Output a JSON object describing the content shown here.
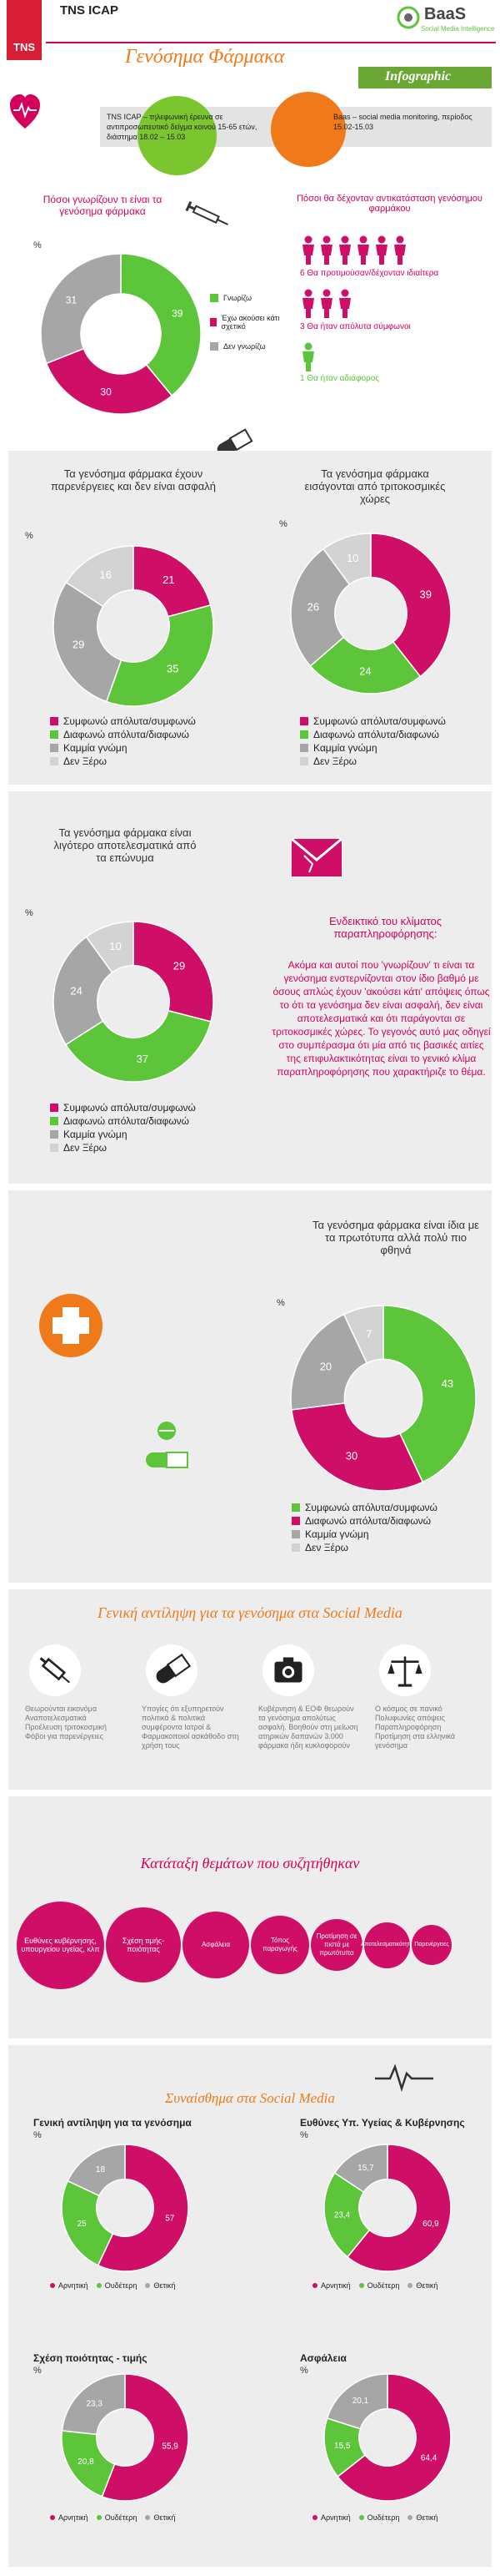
{
  "colors": {
    "magenta": "#cf0f67",
    "green": "#5cc53a",
    "gray": "#a6a6a6",
    "lightgray": "#d3d3d3",
    "orange": "#f07a1a",
    "tnsred": "#d81e34"
  },
  "header": {
    "tns_logo": "TNS",
    "brand": "TNS ICAP",
    "title": "Γενόσημα Φάρμακα",
    "baas_logo": "BaaS",
    "baas_sub": "Social Media Intelligence",
    "infographic": "Infographic"
  },
  "method": {
    "left_text": "TNS ICAP – τηλεφωνική έρευνα σε αντιπροσωπευτικό δείγμα κοινού 15-65 ετών, διάστημα 18.02 – 15.03",
    "right_text": "Baas – social media monitoring, περίοδος 15.02-15.03"
  },
  "awareness": {
    "question": "Πόσοι γνωρίζουν τι είναι τα γενόσημα φάρμακα",
    "pct": "%",
    "chart_data": {
      "type": "pie",
      "slices": [
        {
          "label": "Γνωρίζω",
          "value": 39,
          "color": "#5cc53a"
        },
        {
          "label": "Έχω ακούσει κάτι σχετικό",
          "value": 30,
          "color": "#cf0f67"
        },
        {
          "label": "Δεν γνωρίζω",
          "value": 31,
          "color": "#a6a6a6"
        }
      ]
    }
  },
  "acceptance": {
    "question": "Πόσοι θα δέχονταν αντικατάσταση γενόσημου φαρμάκου",
    "line1": "6 Θα προτιμούσαν/δέχονταν ιδιαίτερα",
    "line2": "3 Θα ήταν απόλυτα σύμφωνοι",
    "line3": "1 Θα ήταν αδιάφορος"
  },
  "legend_labels": {
    "agree": "Συμφωνώ απόλυτα/συμφωνώ",
    "disagree": "Διαφωνώ απόλυτα/διαφωνώ",
    "none": "Καμμία γνώμη",
    "dk": "Δεν Ξέρω"
  },
  "sideeffects": {
    "title": "Τα γενόσημα φάρμακα έχουν παρενέργειες και δεν είναι ασφαλή",
    "pct": "%",
    "chart_data": {
      "type": "pie",
      "slices": [
        {
          "label": "Συμφωνώ απόλυτα/συμφωνώ",
          "value": 21,
          "color": "#cf0f67"
        },
        {
          "label": "Διαφωνώ απόλυτα/διαφωνώ",
          "value": 35,
          "color": "#5cc53a"
        },
        {
          "label": "Καμμία γνώμη",
          "value": 29,
          "color": "#a6a6a6"
        },
        {
          "label": "Δεν Ξέρω",
          "value": 16,
          "color": "#d3d3d3"
        }
      ]
    }
  },
  "imported": {
    "title": "Τα γενόσημα φάρμακα εισάγονται από τριτοκοσμικές χώρες",
    "pct": "%",
    "chart_data": {
      "type": "pie",
      "slices": [
        {
          "label": "Συμφωνώ απόλυτα/συμφωνώ",
          "value": 39,
          "color": "#cf0f67"
        },
        {
          "label": "Διαφωνώ απόλυτα/διαφωνώ",
          "value": 24,
          "color": "#5cc53a"
        },
        {
          "label": "Καμμία γνώμη",
          "value": 26,
          "color": "#a6a6a6"
        },
        {
          "label": "Δεν Ξέρω",
          "value": 10,
          "color": "#d3d3d3"
        }
      ]
    }
  },
  "effective": {
    "title": "Τα γενόσημα φάρμακα είναι λιγότερο αποτελεσματικά από τα επώνυμα",
    "pct": "%",
    "chart_data": {
      "type": "pie",
      "slices": [
        {
          "label": "Συμφωνώ απόλυτα/συμφωνώ",
          "value": 29,
          "color": "#cf0f67"
        },
        {
          "label": "Διαφωνώ απόλυτα/διαφωνώ",
          "value": 37,
          "color": "#5cc53a"
        },
        {
          "label": "Καμμία γνώμη",
          "value": 24,
          "color": "#a6a6a6"
        },
        {
          "label": "Δεν Ξέρω",
          "value": 10,
          "color": "#d3d3d3"
        }
      ]
    }
  },
  "misinfo": {
    "heading": "Ενδεικτικό του κλίματος παραπληροφόρησης:",
    "body": "Ακόμα και αυτοί που 'γνωρίζουν' τι είναι τα γενόσημα ενστερνίζονται στον ίδιο βαθμό με όσους απλώς έχουν 'ακούσει κάτι' απόψεις όπως το ότι τα γενόσημα δεν είναι ασφαλή, δεν είναι αποτελεσματικά και ότι παράγονται σε τριτοκοσμικές χώρες. Το γεγονός αυτό μας οδηγεί στο συμπέρασμα ότι μία από τις βασικές αιτίες της επιφυλακτικότητας είναι το γενικό κλίμα παραπληροφόρησης που χαρακτήριζε το θέμα."
  },
  "same": {
    "title": "Τα γενόσημα φάρμακα είναι ίδια με τα πρωτότυπα αλλά πολύ πιο φθηνά",
    "pct": "%",
    "chart_data": {
      "type": "pie",
      "slices": [
        {
          "label": "Συμφωνώ απόλυτα/συμφωνώ",
          "value": 43,
          "color": "#5cc53a"
        },
        {
          "label": "Διαφωνώ απόλυτα/διαφωνώ",
          "value": 30,
          "color": "#cf0f67"
        },
        {
          "label": "Καμμία γνώμη",
          "value": 20,
          "color": "#a6a6a6"
        },
        {
          "label": "Δεν Ξέρω",
          "value": 7,
          "color": "#d3d3d3"
        }
      ]
    },
    "legend": [
      "Συμφωνώ απόλυτα/συμφωνώ",
      "Διαφωνώ απόλυτα/διαφωνώ",
      "Καμμία γνώμη",
      "Δεν Ξέρω"
    ]
  },
  "social": {
    "title": "Γενική αντίληψη για τα γενόσημα στα Social Media",
    "items": [
      {
        "icon": "syringe-icon",
        "text": "Θεωρούνται εικονόμα Αναποτελεσματικά Προέλευση τριτοκοσμική Φόβοι για παρενέργειες"
      },
      {
        "icon": "pill-icon",
        "text": "Υπογίες ότι εξυπηρετούν πολιτικά & πολιτικά συμφέροντα Ιατροί & Φαρμακοποιοί ασκάθοδο στη χρήση τους"
      },
      {
        "icon": "camera-icon",
        "text": "Κυβέρνηση & ΕΟΦ θεωρούν τα γενόσημα απολύτως ασφαλή. Βοηθούν στη μείωση ατηρικών δαπανών 3.000 φάρμακα ήδη κυκλοφορούν"
      },
      {
        "icon": "balance-icon",
        "text": "Ο κόσμος σε πανικό Πολυφωνίες απόψεις Παραπληροφόρηση Προτίμηση στα ελληνικά γενόσημα"
      }
    ]
  },
  "ranking": {
    "title": "Κατάταξη θεμάτων που συζητήθηκαν",
    "items": [
      "Ευθύνες κυβέρνησης, υπουργείου υγείας, κλπ",
      "Σχέση τιμής-ποιότητας",
      "Ασφάλεια",
      "Τόπος παραγωγής",
      "Προτίμηση σε πιστά με πρωτότυπα",
      "Αποτελεσματικότητα",
      "Παρενέργειες"
    ]
  },
  "sentiment": {
    "title": "Συναίσθημα στα Social Media",
    "legend": [
      "Αρνητική",
      "Ουδέτερη",
      "Θετική"
    ],
    "charts": [
      {
        "title": "Γενική αντίληψη για τα γενόσημα",
        "pct": "%",
        "chart_data": {
          "type": "pie",
          "slices": [
            {
              "label": "Αρνητική",
              "value": 57,
              "color": "#cf0f67"
            },
            {
              "label": "Ουδέτερη",
              "value": 25,
              "color": "#5cc53a"
            },
            {
              "label": "Θετική",
              "value": 18,
              "color": "#a6a6a6"
            }
          ]
        }
      },
      {
        "title": "Ευθύνες Υπ. Υγείας & Κυβέρνησης",
        "pct": "%",
        "chart_data": {
          "type": "pie",
          "slices": [
            {
              "label": "Αρνητική",
              "value": 60.9,
              "color": "#cf0f67"
            },
            {
              "label": "Ουδέτερη",
              "value": 23.4,
              "color": "#5cc53a"
            },
            {
              "label": "Θετική",
              "value": 15.7,
              "color": "#a6a6a6"
            }
          ]
        }
      },
      {
        "title": "Σχέση ποιότητας - τιμής",
        "pct": "%",
        "chart_data": {
          "type": "pie",
          "slices": [
            {
              "label": "Αρνητική",
              "value": 55.9,
              "color": "#cf0f67"
            },
            {
              "label": "Ουδέτερη",
              "value": 20.8,
              "color": "#5cc53a"
            },
            {
              "label": "Θετική",
              "value": 23.3,
              "color": "#a6a6a6"
            }
          ]
        }
      },
      {
        "title": "Ασφάλεια",
        "pct": "%",
        "chart_data": {
          "type": "pie",
          "slices": [
            {
              "label": "Αρνητική",
              "value": 64.4,
              "color": "#cf0f67"
            },
            {
              "label": "Ουδέτερη",
              "value": 15.5,
              "color": "#5cc53a"
            },
            {
              "label": "Θετική",
              "value": 20.1,
              "color": "#a6a6a6"
            }
          ]
        }
      }
    ]
  }
}
